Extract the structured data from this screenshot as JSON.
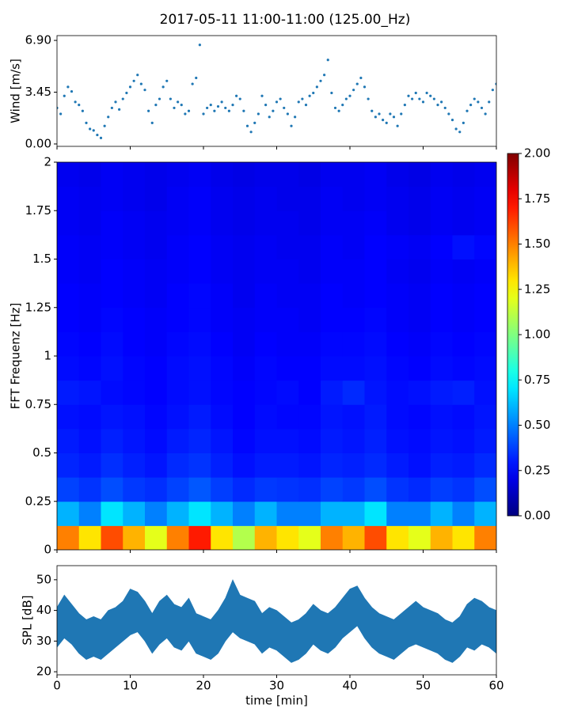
{
  "title": "2017-05-11 11:00-11:00 (125.00_Hz)",
  "chart_data": [
    {
      "type": "scatter",
      "ylabel": "Wind [m/s]",
      "color": "#1f77b4",
      "x": [
        0,
        0.5,
        1,
        1.5,
        2,
        2.5,
        3,
        3.5,
        4,
        4.5,
        5,
        5.5,
        6,
        6.5,
        7,
        7.5,
        8,
        8.5,
        9,
        9.5,
        10,
        10.5,
        11,
        11.5,
        12,
        12.5,
        13,
        13.5,
        14,
        14.5,
        15,
        15.5,
        16,
        16.5,
        17,
        17.5,
        18,
        18.5,
        19,
        19.5,
        20,
        20.5,
        21,
        21.5,
        22,
        22.5,
        23,
        23.5,
        24,
        24.5,
        25,
        25.5,
        26,
        26.5,
        27,
        27.5,
        28,
        28.5,
        29,
        29.5,
        30,
        30.5,
        31,
        31.5,
        32,
        32.5,
        33,
        33.5,
        34,
        34.5,
        35,
        35.5,
        36,
        36.5,
        37,
        37.5,
        38,
        38.5,
        39,
        39.5,
        40,
        40.5,
        41,
        41.5,
        42,
        42.5,
        43,
        43.5,
        44,
        44.5,
        45,
        45.5,
        46,
        46.5,
        47,
        47.5,
        48,
        48.5,
        49,
        49.5,
        50,
        50.5,
        51,
        51.5,
        52,
        52.5,
        53,
        53.5,
        54,
        54.5,
        55,
        55.5,
        56,
        56.5,
        57,
        57.5,
        58,
        58.5,
        59,
        59.5,
        60
      ],
      "values": [
        2.4,
        2.0,
        3.2,
        3.8,
        3.5,
        2.8,
        2.6,
        2.2,
        1.4,
        1.0,
        0.9,
        0.6,
        0.4,
        1.2,
        1.8,
        2.4,
        2.8,
        2.3,
        3.0,
        3.4,
        3.8,
        4.2,
        4.6,
        4.0,
        3.6,
        2.2,
        1.4,
        2.6,
        3.0,
        3.8,
        4.2,
        3.0,
        2.4,
        2.8,
        2.6,
        2.0,
        2.2,
        4.0,
        4.4,
        6.6,
        2.0,
        2.4,
        2.6,
        2.2,
        2.5,
        2.8,
        2.4,
        2.2,
        2.6,
        3.2,
        3.0,
        2.2,
        1.2,
        0.8,
        1.4,
        2.0,
        3.2,
        2.6,
        1.8,
        2.2,
        2.8,
        3.0,
        2.4,
        2.0,
        1.2,
        1.8,
        2.8,
        3.0,
        2.6,
        3.2,
        3.4,
        3.8,
        4.2,
        4.6,
        5.6,
        3.4,
        2.4,
        2.2,
        2.6,
        3.0,
        3.2,
        3.6,
        4.0,
        4.4,
        3.8,
        3.0,
        2.2,
        1.8,
        2.0,
        1.6,
        1.4,
        2.0,
        1.8,
        1.2,
        2.0,
        2.6,
        3.2,
        3.0,
        3.4,
        3.0,
        2.8,
        3.4,
        3.2,
        3.0,
        2.6,
        2.8,
        2.4,
        2.0,
        1.6,
        1.0,
        0.8,
        1.4,
        2.2,
        2.6,
        3.0,
        2.8,
        2.4,
        2.0,
        2.8,
        3.6,
        4.0
      ],
      "xlim": [
        0,
        60
      ],
      "ylim": [
        -0.16,
        7.22
      ],
      "xticks": [
        0,
        10,
        20,
        30,
        40,
        50,
        60
      ],
      "yticks": [
        {
          "value": 0,
          "label": "0.00"
        },
        {
          "value": 3.45,
          "label": "3.45"
        },
        {
          "value": 6.9,
          "label": "6.90"
        }
      ]
    },
    {
      "type": "heatmap",
      "ylabel": "FFT Frequenz [Hz]",
      "colormap": "jet",
      "clim": [
        0,
        2
      ],
      "xbins": [
        0,
        3,
        6,
        9,
        12,
        15,
        18,
        21,
        24,
        27,
        30,
        33,
        36,
        39,
        42,
        45,
        48,
        51,
        54,
        57,
        60
      ],
      "ybins": [
        0,
        0.125,
        0.25,
        0.375,
        0.5,
        0.625,
        0.75,
        0.875,
        1,
        1.125,
        1.25,
        1.375,
        1.5,
        1.625,
        1.75,
        1.875,
        2
      ],
      "z": [
        [
          1.5,
          1.3,
          1.6,
          1.4,
          1.2,
          1.5,
          1.7,
          1.3,
          1.1,
          1.4,
          1.3,
          1.2,
          1.5,
          1.4,
          1.6,
          1.3,
          1.2,
          1.4,
          1.3,
          1.5
        ],
        [
          0.6,
          0.5,
          0.7,
          0.6,
          0.5,
          0.6,
          0.7,
          0.6,
          0.5,
          0.6,
          0.5,
          0.5,
          0.6,
          0.6,
          0.7,
          0.5,
          0.5,
          0.6,
          0.5,
          0.6
        ],
        [
          0.38,
          0.35,
          0.4,
          0.36,
          0.34,
          0.38,
          0.42,
          0.37,
          0.33,
          0.36,
          0.35,
          0.34,
          0.38,
          0.36,
          0.4,
          0.35,
          0.33,
          0.37,
          0.35,
          0.4
        ],
        [
          0.32,
          0.3,
          0.34,
          0.31,
          0.29,
          0.33,
          0.35,
          0.31,
          0.28,
          0.3,
          0.3,
          0.29,
          0.32,
          0.31,
          0.33,
          0.3,
          0.28,
          0.31,
          0.3,
          0.33
        ],
        [
          0.3,
          0.28,
          0.31,
          0.29,
          0.27,
          0.3,
          0.32,
          0.29,
          0.26,
          0.28,
          0.28,
          0.27,
          0.3,
          0.29,
          0.31,
          0.28,
          0.27,
          0.29,
          0.28,
          0.3
        ],
        [
          0.28,
          0.27,
          0.29,
          0.28,
          0.26,
          0.28,
          0.3,
          0.27,
          0.25,
          0.27,
          0.26,
          0.26,
          0.29,
          0.28,
          0.3,
          0.27,
          0.26,
          0.28,
          0.27,
          0.29
        ],
        [
          0.3,
          0.29,
          0.27,
          0.26,
          0.25,
          0.27,
          0.28,
          0.26,
          0.25,
          0.26,
          0.27,
          0.25,
          0.3,
          0.33,
          0.29,
          0.27,
          0.28,
          0.3,
          0.31,
          0.28
        ],
        [
          0.27,
          0.26,
          0.28,
          0.26,
          0.25,
          0.27,
          0.28,
          0.26,
          0.24,
          0.26,
          0.25,
          0.25,
          0.27,
          0.27,
          0.28,
          0.26,
          0.25,
          0.27,
          0.26,
          0.27
        ],
        [
          0.26,
          0.25,
          0.27,
          0.25,
          0.24,
          0.26,
          0.27,
          0.25,
          0.23,
          0.25,
          0.24,
          0.24,
          0.26,
          0.26,
          0.27,
          0.25,
          0.24,
          0.26,
          0.25,
          0.26
        ],
        [
          0.25,
          0.24,
          0.26,
          0.25,
          0.24,
          0.25,
          0.26,
          0.24,
          0.23,
          0.24,
          0.24,
          0.23,
          0.25,
          0.25,
          0.26,
          0.24,
          0.23,
          0.25,
          0.24,
          0.25
        ],
        [
          0.25,
          0.24,
          0.25,
          0.24,
          0.23,
          0.25,
          0.26,
          0.24,
          0.22,
          0.24,
          0.23,
          0.23,
          0.25,
          0.24,
          0.25,
          0.24,
          0.23,
          0.25,
          0.24,
          0.25
        ],
        [
          0.24,
          0.23,
          0.25,
          0.24,
          0.23,
          0.24,
          0.25,
          0.23,
          0.22,
          0.23,
          0.23,
          0.22,
          0.24,
          0.24,
          0.25,
          0.23,
          0.22,
          0.24,
          0.23,
          0.24
        ],
        [
          0.24,
          0.23,
          0.24,
          0.23,
          0.22,
          0.24,
          0.25,
          0.23,
          0.22,
          0.23,
          0.22,
          0.22,
          0.24,
          0.23,
          0.25,
          0.24,
          0.23,
          0.25,
          0.28,
          0.26
        ],
        [
          0.23,
          0.22,
          0.24,
          0.23,
          0.22,
          0.23,
          0.24,
          0.22,
          0.21,
          0.22,
          0.22,
          0.21,
          0.23,
          0.23,
          0.24,
          0.22,
          0.21,
          0.23,
          0.22,
          0.23
        ],
        [
          0.23,
          0.22,
          0.23,
          0.22,
          0.21,
          0.23,
          0.24,
          0.22,
          0.21,
          0.22,
          0.21,
          0.21,
          0.23,
          0.22,
          0.23,
          0.22,
          0.21,
          0.23,
          0.22,
          0.23
        ],
        [
          0.22,
          0.21,
          0.23,
          0.22,
          0.21,
          0.22,
          0.23,
          0.21,
          0.2,
          0.21,
          0.21,
          0.2,
          0.22,
          0.22,
          0.23,
          0.21,
          0.2,
          0.22,
          0.21,
          0.22
        ]
      ],
      "cticks": [
        {
          "value": 0,
          "label": "0.00"
        },
        {
          "value": 0.25,
          "label": "0.25"
        },
        {
          "value": 0.5,
          "label": "0.50"
        },
        {
          "value": 0.75,
          "label": "0.75"
        },
        {
          "value": 1,
          "label": "1.00"
        },
        {
          "value": 1.25,
          "label": "1.25"
        },
        {
          "value": 1.5,
          "label": "1.50"
        },
        {
          "value": 1.75,
          "label": "1.75"
        },
        {
          "value": 2,
          "label": "2.00"
        }
      ],
      "xlim": [
        0,
        60
      ],
      "ylim": [
        0,
        2
      ],
      "xticks": [
        0,
        10,
        20,
        30,
        40,
        50,
        60
      ],
      "yticks": [
        0,
        0.25,
        0.5,
        0.75,
        1,
        1.25,
        1.5,
        1.75,
        2
      ]
    },
    {
      "type": "band",
      "xlabel": "time [min]",
      "ylabel": "SPL [dB]",
      "color": "#1f77b4",
      "x": [
        0,
        1,
        2,
        3,
        4,
        5,
        6,
        7,
        8,
        9,
        10,
        11,
        12,
        13,
        14,
        15,
        16,
        17,
        18,
        19,
        20,
        21,
        22,
        23,
        24,
        25,
        26,
        27,
        28,
        29,
        30,
        31,
        32,
        33,
        34,
        35,
        36,
        37,
        38,
        39,
        40,
        41,
        42,
        43,
        44,
        45,
        46,
        47,
        48,
        49,
        50,
        51,
        52,
        53,
        54,
        55,
        56,
        57,
        58,
        59,
        60
      ],
      "upper": [
        41,
        45,
        42,
        39,
        37,
        38,
        37,
        40,
        41,
        43,
        47,
        46,
        43,
        39,
        43,
        45,
        42,
        41,
        44,
        39,
        38,
        37,
        40,
        44,
        50,
        45,
        44,
        43,
        39,
        41,
        40,
        38,
        36,
        37,
        39,
        42,
        40,
        39,
        41,
        44,
        47,
        48,
        44,
        41,
        39,
        38,
        37,
        39,
        41,
        43,
        41,
        40,
        39,
        37,
        36,
        38,
        42,
        44,
        43,
        41,
        40
      ],
      "lower": [
        28,
        31,
        29,
        26,
        24,
        25,
        24,
        26,
        28,
        30,
        32,
        33,
        30,
        26,
        29,
        31,
        28,
        27,
        30,
        26,
        25,
        24,
        26,
        30,
        33,
        31,
        30,
        29,
        26,
        28,
        27,
        25,
        23,
        24,
        26,
        29,
        27,
        26,
        28,
        31,
        33,
        35,
        31,
        28,
        26,
        25,
        24,
        26,
        28,
        29,
        28,
        27,
        26,
        24,
        23,
        25,
        28,
        27,
        29,
        28,
        26
      ],
      "xlim": [
        0,
        60
      ],
      "ylim": [
        19,
        54.6
      ],
      "xticks": [
        0,
        10,
        20,
        30,
        40,
        50,
        60
      ],
      "yticks": [
        20,
        30,
        40,
        50
      ]
    }
  ]
}
